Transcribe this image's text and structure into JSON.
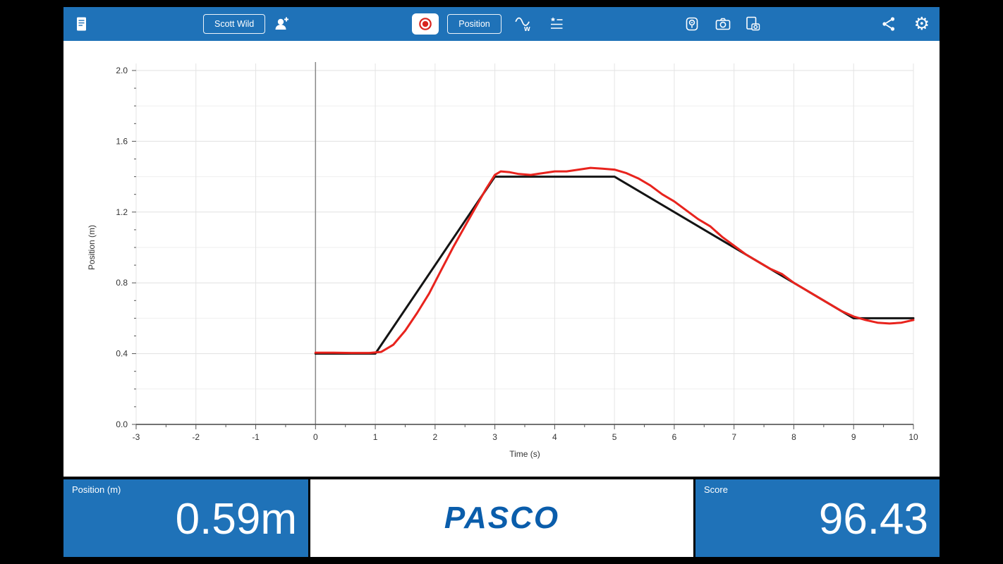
{
  "toolbar": {
    "bg_color": "#1f72b8",
    "user_button": "Scott Wild",
    "measurement_button": "Position",
    "icons": [
      "journal-icon",
      "add-user-icon",
      "record-icon",
      "match-graph-icon",
      "results-list-icon",
      "sensor-icon",
      "camera-icon",
      "screenshot-icon",
      "share-icon",
      "gear-icon"
    ],
    "record_color": "#d8251f"
  },
  "chart_data": {
    "type": "line",
    "title": "",
    "xlabel": "Time (s)",
    "ylabel": "Position (m)",
    "xlim": [
      -3,
      10
    ],
    "ylim": [
      0,
      2
    ],
    "x_major_ticks": [
      -3,
      -2,
      -1,
      0,
      1,
      2,
      3,
      4,
      5,
      6,
      7,
      8,
      9,
      10
    ],
    "x_minor_step": 0.5,
    "y_major_ticks": [
      0.0,
      0.4,
      0.8,
      1.2,
      1.6,
      2.0
    ],
    "y_minor_step": 0.1,
    "grid": true,
    "legend": "none",
    "series": [
      {
        "name": "target-path",
        "color": "#141414",
        "points": [
          [
            0,
            0.4
          ],
          [
            1,
            0.4
          ],
          [
            3,
            1.4
          ],
          [
            5,
            1.4
          ],
          [
            9,
            0.6
          ],
          [
            10,
            0.6
          ]
        ]
      },
      {
        "name": "recorded-position",
        "color": "#e8231d",
        "points": [
          [
            0,
            0.405
          ],
          [
            0.3,
            0.405
          ],
          [
            0.6,
            0.404
          ],
          [
            0.9,
            0.404
          ],
          [
            1.1,
            0.41
          ],
          [
            1.3,
            0.45
          ],
          [
            1.5,
            0.53
          ],
          [
            1.7,
            0.63
          ],
          [
            1.9,
            0.74
          ],
          [
            2.1,
            0.87
          ],
          [
            2.3,
            1.0
          ],
          [
            2.5,
            1.12
          ],
          [
            2.7,
            1.24
          ],
          [
            2.85,
            1.33
          ],
          [
            3.0,
            1.41
          ],
          [
            3.1,
            1.43
          ],
          [
            3.25,
            1.425
          ],
          [
            3.4,
            1.415
          ],
          [
            3.6,
            1.41
          ],
          [
            3.8,
            1.42
          ],
          [
            4.0,
            1.43
          ],
          [
            4.2,
            1.43
          ],
          [
            4.4,
            1.44
          ],
          [
            4.6,
            1.45
          ],
          [
            4.8,
            1.445
          ],
          [
            5.0,
            1.44
          ],
          [
            5.2,
            1.42
          ],
          [
            5.4,
            1.39
          ],
          [
            5.6,
            1.35
          ],
          [
            5.8,
            1.3
          ],
          [
            6.0,
            1.26
          ],
          [
            6.2,
            1.21
          ],
          [
            6.4,
            1.16
          ],
          [
            6.6,
            1.12
          ],
          [
            6.8,
            1.06
          ],
          [
            7.0,
            1.01
          ],
          [
            7.2,
            0.96
          ],
          [
            7.4,
            0.92
          ],
          [
            7.6,
            0.88
          ],
          [
            7.8,
            0.85
          ],
          [
            8.0,
            0.8
          ],
          [
            8.2,
            0.76
          ],
          [
            8.4,
            0.72
          ],
          [
            8.6,
            0.68
          ],
          [
            8.8,
            0.64
          ],
          [
            9.0,
            0.61
          ],
          [
            9.2,
            0.59
          ],
          [
            9.4,
            0.575
          ],
          [
            9.6,
            0.57
          ],
          [
            9.8,
            0.575
          ],
          [
            10,
            0.59
          ]
        ]
      }
    ]
  },
  "bottom": {
    "position_label": "Position (m)",
    "position_value": "0.59m",
    "logo": "PASCO",
    "score_label": "Score",
    "score_value": "96.43"
  }
}
